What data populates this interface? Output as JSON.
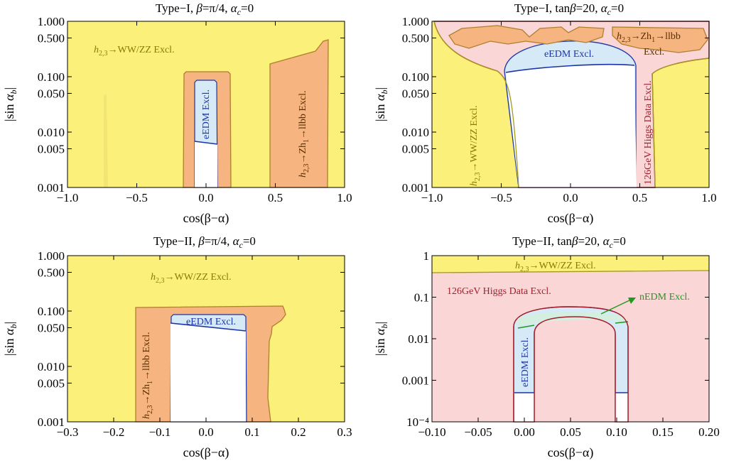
{
  "colors": {
    "ww_zz": "#fbf07a",
    "ww_zz_edge": "#a39a1e",
    "zh_llbb": "#f6b480",
    "zh_llbb_edge": "#b07f2a",
    "edm": "#d6e9f7",
    "edm_edge": "#1a35a8",
    "higgs_data": "#fbd6d6",
    "higgs_data_edge": "#a41e2b",
    "nedm": "#d4efe0",
    "nedm_edge": "#1e9a1e",
    "allowed": "#ffffff",
    "frame": "#000000"
  },
  "chart_data": [
    {
      "id": "p1",
      "type": "region",
      "title": "Type−I, β=π/4, αc=0",
      "title_parts": {
        "prefix": "Type−I, ",
        "beta": "β",
        "beta_rest": "=π/4, ",
        "alpha": "α",
        "sub": "c",
        "rest": "=0"
      },
      "xlabel": "cos(β−α)",
      "ylabel": "|sin αb|",
      "xlim": [
        -1.0,
        1.0
      ],
      "ylim": [
        0.001,
        1.0
      ],
      "yscale": "log",
      "xticks": [
        "−1.0",
        "−0.5",
        "0.0",
        "0.5",
        "1.0"
      ],
      "xtick_values": [
        -1.0,
        -0.5,
        0.0,
        0.5,
        1.0
      ],
      "yticks": [
        "0.001",
        "0.005",
        "0.010",
        "0.050",
        "0.100",
        "0.500",
        "1.000"
      ],
      "ytick_values": [
        0.001,
        0.005,
        0.01,
        0.05,
        0.1,
        0.5,
        1.0
      ],
      "labels": {
        "ww_zz": "h2,3→WW/ZZ Excl.",
        "zh_llbb": "h2,3→Zh1→llbb Excl.",
        "edm": "eEDM Excl."
      }
    },
    {
      "id": "p2",
      "type": "region",
      "title": "Type−I, tanβ=20, αc=0",
      "title_parts": {
        "prefix": "Type−I, tan",
        "beta": "β",
        "beta_rest": "=20, ",
        "alpha": "α",
        "sub": "c",
        "rest": "=0"
      },
      "xlabel": "cos(β−α)",
      "ylabel": "|sin αb|",
      "xlim": [
        -1.0,
        1.0
      ],
      "ylim": [
        0.001,
        1.0
      ],
      "yscale": "log",
      "xticks": [
        "−1.0",
        "−0.5",
        "0.0",
        "0.5",
        "1.0"
      ],
      "xtick_values": [
        -1.0,
        -0.5,
        0.0,
        0.5,
        1.0
      ],
      "yticks": [
        "0.001",
        "0.005",
        "0.010",
        "0.050",
        "0.100",
        "0.500",
        "1.000"
      ],
      "ytick_values": [
        0.001,
        0.005,
        0.01,
        0.05,
        0.1,
        0.5,
        1.0
      ],
      "labels": {
        "ww_zz": "h2,3→WW/ZZ Excl.",
        "zh_llbb": "h2,3→Zh1→llbb",
        "zh_llbb_2": "Excl.",
        "edm": "eEDM Excl.",
        "higgs_data": "126GeV Higgs Data Excl."
      }
    },
    {
      "id": "p3",
      "type": "region",
      "title": "Type−II, β=π/4, αc=0",
      "title_parts": {
        "prefix": "Type−II, ",
        "beta": "β",
        "beta_rest": "=π/4, ",
        "alpha": "α",
        "sub": "c",
        "rest": "=0"
      },
      "xlabel": "cos(β−α)",
      "ylabel": "|sin αb|",
      "xlim": [
        -0.3,
        0.3
      ],
      "ylim": [
        0.001,
        1.0
      ],
      "yscale": "log",
      "xticks": [
        "−0.3",
        "−0.2",
        "−0.1",
        "0.0",
        "0.1",
        "0.2",
        "0.3"
      ],
      "xtick_values": [
        -0.3,
        -0.2,
        -0.1,
        0.0,
        0.1,
        0.2,
        0.3
      ],
      "yticks": [
        "0.001",
        "0.005",
        "0.010",
        "0.050",
        "0.100",
        "0.500",
        "1.000"
      ],
      "ytick_values": [
        0.001,
        0.005,
        0.01,
        0.05,
        0.1,
        0.5,
        1.0
      ],
      "labels": {
        "ww_zz": "h2,3→WW/ZZ Excl.",
        "zh_llbb": "h2,3→Zh1→llbb Excl.",
        "edm": "eEDM Excl."
      }
    },
    {
      "id": "p4",
      "type": "region",
      "title": "Type−II, tanβ=20, αc=0",
      "title_parts": {
        "prefix": "Type−II, tan",
        "beta": "β",
        "beta_rest": "=20, ",
        "alpha": "α",
        "sub": "c",
        "rest": "=0"
      },
      "xlabel": "cos(β−α)",
      "ylabel": "|sin αb|",
      "xlim": [
        -0.1,
        0.2
      ],
      "ylim": [
        0.0001,
        1.0
      ],
      "yscale": "log",
      "xticks": [
        "−0.10",
        "−0.05",
        "0.00",
        "0.05",
        "0.10",
        "0.15",
        "0.20"
      ],
      "xtick_values": [
        -0.1,
        -0.05,
        0.0,
        0.05,
        0.1,
        0.15,
        0.2
      ],
      "yticks": [
        "10⁻⁴",
        "0.001",
        "0.01",
        "0.1",
        "1"
      ],
      "ytick_values": [
        0.0001,
        0.001,
        0.01,
        0.1,
        1.0
      ],
      "labels": {
        "ww_zz": "h2,3→WW/ZZ Excl.",
        "higgs_data": "126GeV Higgs Data Excl.",
        "nedm": "nEDM Excl.",
        "edm": "eEDM Excl."
      }
    }
  ]
}
